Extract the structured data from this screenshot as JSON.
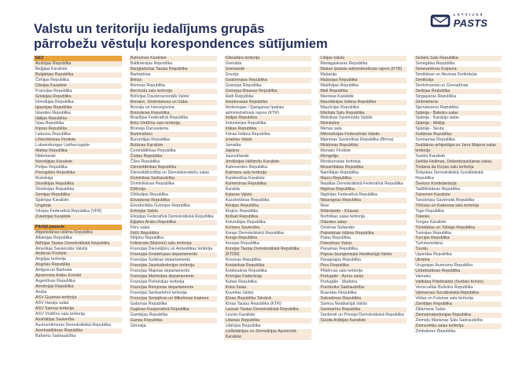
{
  "logo": {
    "brand_top": "LATVIJAS",
    "brand_bottom": "PASTS"
  },
  "title": {
    "line1": "Valstu un teritoriju iedalījums grupās",
    "line2": "pārrobežu vēstuļu korespondences sūtījumiem"
  },
  "colors": {
    "accent_gold": "#e8a33c",
    "stripe_beige": "#f6e9d9",
    "navy": "#252f5e",
    "body_text": "#41424c"
  },
  "columns": [
    {
      "blocks": [
        {
          "header": "EEZ",
          "items": [
            "Austrijas Republika",
            "Beļģijas Karaliste",
            "Bulgārijas Republika",
            "Čehijas Republika",
            "Dānijas Karaliste",
            "Francijas Republika",
            "Grieķijas Republika",
            "Horvātijas Republika",
            "Igaunijas Republika",
            "Islandes Republika",
            "Itālijas Republika",
            "Īrijas Republika",
            "Kipras Republika",
            "Lietuvas Republika",
            "Lihtenšteinas Firstiste",
            "Luksemburgas Lielhercogiste",
            "Maltas Republika",
            "Nīderlande",
            "Norvēģijas Karaliste",
            "Polijas Republika",
            "Portugāles Republika",
            "Rumānija",
            "Slovākijas Republika",
            "Slovēnijas Republika",
            "Somijas Republika",
            "Spānijas Karaliste",
            "Ungārija",
            "Vācijas Federatīvā Republika (VFR)",
            "Zviedrijas Karaliste"
          ]
        },
        {
          "header": "Pārējā pasaule",
          "items": [
            "Afganistānas Islāma Republika",
            "Albānijas Republika",
            "Alžīrijas Tautas Demokrātiskā Republika",
            "Amerikas Savienotās Valstis",
            "Andoras Firstiste",
            "Angiljas teritorija",
            "Angolas Republika",
            "Antigva un Barbuda",
            "Apvienotie Arābu Emirāti",
            "Argentīnas Republika",
            "Armēnijas Republika",
            "Aruba",
            "ASV Guamas teritorija",
            "ASV Havaju salas",
            "ASV Samoa teritorija",
            "ASV Virdžīnu salu teritorija",
            "Austrālijas Savienība",
            "Austrumtimoras Demokrātiskā Republika",
            "Azerbaidžānas Republika",
            "Bahamu Sadraudzība"
          ]
        }
      ]
    },
    {
      "blocks": [
        {
          "header": null,
          "items": [
            "Bahreinas Karaliste",
            "Baltkrievijas Republika",
            "Bangladešas Tautas Republika",
            "Barbadosa",
            "Beliza",
            "Beninas Republika",
            "Bermudu salu teritorija",
            "Bolīvijas Daudznacionālā Valsts",
            "Bonaire, Sintēstatiusa un Saba",
            "Bosnija un Hercegovina",
            "Botsvānas Republika",
            "Brazīlijas Federatīvā Republika",
            "Britu Virdžīnu salu teritorija",
            "Bruneja Darusalama",
            "Burkinafaso",
            "Burundijas Republika",
            "Butānas Karaliste",
            "Centrālāfrikas Republika",
            "Čadas Republika",
            "Čīles Republika",
            "Dienvidāfrikas Republika",
            "Dienviddžordžija un Dienvidsendviču salas",
            "Dominikas Sadraudzība",
            "Dominikānas Republika",
            "Džērsija",
            "Džibutijas Republika",
            "Ekvadoras Republika",
            "Ekvatoriālās Gvinejas Republika",
            "Eritrejas Valsts",
            "Etiopijas Federatīvā Demokrātiskā Republika",
            "Ēģiptes Arābu Republika",
            "Fēru salas",
            "Fidži Republika",
            "Filipīnu Republika",
            "Folklenda (Malvinu) salu teritorija",
            "Francijas Dienvidjūru un Antarktikas teritorija",
            "Francijas Gvadelupas departaments",
            "Francijas Gviānas departaments",
            "Francijas Jaunkaledonijas teritorija",
            "Francijas Majotas departaments",
            "Francijas Martinikas departaments",
            "Francijas Polinēzijas teritorija",
            "Francijas Reinjonas departaments",
            "Francijas Senbartelmī teritorija",
            "Francijas Senpjēras un Mikelonas kopiena",
            "Gabonas Republika",
            "Gajānas Kooperatīvā Republika",
            "Gambijas Republika",
            "Ganas Republika",
            "Gērnsija"
          ]
        }
      ]
    },
    {
      "blocks": [
        {
          "header": null,
          "items": [
            "Gibraltāra teritorija",
            "Grenāda",
            "Grenlande",
            "Gruzija",
            "Gvatemalas Republika",
            "Gvinejas Republika",
            "Gvinejas-Bisavas Republika",
            "Haiti Republika",
            "Hondurasas Republika",
            "Honkongas / Sjanganas īpašais administratīvais rajons (KTR)",
            "Indijas Republika",
            "Indonēzijas Republika",
            "Irākas Republika",
            "Irānas Islāma Republika",
            "Izraēlas Valsts",
            "Jamaika",
            "Japāna",
            "Jaunzēlande",
            "Jordānijas Hāšimītu Karaliste",
            "Kaboverdes Republika",
            "Kaimanu salu teritorija",
            "Kambodžas Karaliste",
            "Kamerūnas Republika",
            "Kanāda",
            "Kataras Valsts",
            "Kazahstānas Republika",
            "Kenijas Republika",
            "Kirgīzu Republika",
            "Kiribati Republika",
            "Kolumbijas Republika",
            "Komoru Savienība",
            "Kongo Demokrātiskā Republika",
            "Kongo Republika",
            "Korejas Republika",
            "Korejas Tautas Demokrātiskā Republika (KTDR)",
            "Kosovas Republika",
            "Kostarikas Republika",
            "Kotdivuāras Republika",
            "Krievijas Federācija",
            "Kubas Republika",
            "Kuka Salas",
            "Kuveitas Valsts",
            "Ķīnas Republika Taivānā",
            "Ķīnas Tautas Republika (KTR)",
            "Laosas Tautas Demokrātiskā Republika",
            "Lesoto Karaliste",
            "Libānas Republika",
            "Libērijas Republika",
            "Lielbritānijas un Ziemeļīrijas Apvienotā Karaliste"
          ]
        }
      ]
    },
    {
      "blocks": [
        {
          "header": null,
          "items": [
            "Lībijas Valsts",
            "Madagaskaras Republika",
            "Makao īpašais administratīvais rajons (KTR)",
            "Malaizija",
            "Malāvijas Republika",
            "Maldīvijas Republika",
            "Mali Republika",
            "Marokas Karaliste",
            "Mauritānijas Islāma Republika",
            "Maurīcijas Republika",
            "Māršala Salu Republika",
            "Meksikas Savienotās Valstis",
            "Melnkalne",
            "Menas sala",
            "Mikronēzijas Federatīvās Valstis",
            "Mjanmas Savienības Republika (Birma)",
            "Moldovas Republika",
            "Monako Firstiste",
            "Mongolija",
            "Montserratas teritorija",
            "Mozambikas Republika",
            "Namībijas Republika",
            "Nauru Republika",
            "Nepālas Demokrātiskā Federatīvā Republika",
            "Nigēras Republika",
            "Nigērijas Federatīvā Republika",
            "Nikaragvas Republika",
            "Niue",
            "Nīderlande - Kirasao",
            "Norfolkas salas teritorija",
            "Olandes salas",
            "Omānas Sultanāts",
            "Pakistānas Islāma Republika",
            "Palau Republika",
            "Palestīnas Valsts",
            "Panamas Republika",
            "Papua-Jaungvinejas Neatkarīgā Valsts",
            "Paragvajas Republika",
            "Peru Republika",
            "Pitkērnas salu teritorija",
            "Portugāle - Azoru salas",
            "Portugāle - Madeira",
            "Puertoriko Sadraudzība",
            "Ruandas Republika",
            "Salvadoras Republika",
            "Samoa Neatkarīgā Valsts",
            "Sanmarīno Republika",
            "Santomē un Prinsipi Demokrātiskā Republika",
            "Saūda Arābijas Karaliste"
          ]
        }
      ]
    },
    {
      "blocks": [
        {
          "header": null,
          "items": [
            "Seišelu Salu Republika",
            "Senegālas Republika",
            "Senmartēnas Kopiena",
            "Sentkitsas un Nevisas Federācija",
            "Sentlūsija",
            "Sentvinsenta un Grenadīnas",
            "Serbijas Republika",
            "Singapūras Republika",
            "Sintmārtena",
            "Sjerraleones Republika",
            "Spānija - Baleāru salas",
            "Spānija - Kanāriju salas",
            "Spānija - Melilja",
            "Spānija - Seuta",
            "Sudānas Republika",
            "Surinamas Republika",
            "Svalbāras arhipelāga un Jana Majena salas teritorija",
            "Svatini Karaliste",
            "Svētās Helēnas, Debesbraukšanas salas, Tristana da Kuņas salu teritorija",
            "Šrilankas Demokrātiskā Sociālistiskā Republika",
            "Šveices Konfederācija",
            "Tadžikistānas Republika",
            "Taizemes Karaliste",
            "Tanzānijas Savienotā Republika",
            "Tērksas un Kaikosas salu teritorija",
            "Togo Republika",
            "Tokelau",
            "Tongas Karaliste",
            "Trinidādas un Tobāgo Republika",
            "Tunisijas Republika",
            "Turcijas Republika",
            "Turkmenistāna",
            "Tuvalu",
            "Ugandas Republika",
            "Ukraina",
            "Urugvajas Austrumu Republika",
            "Uzbekistānas Republika",
            "Vanuatu",
            "Vatikāna Pilsētvalsts (Svētais Krēsls)",
            "Venecuēlas Bolivāra Republika",
            "Vjetnamas Sociālistiskā Republika",
            "Volisa un Futunas salu teritorija",
            "Zambijas Republika",
            "Zālamana Salas",
            "Ziemeļmaķedonijas Republika",
            "Ziemeļu Marianas Salu Sadraudzība",
            "Ziemsvētku salas teritorija",
            "Zimbabves Republika"
          ]
        }
      ]
    }
  ]
}
